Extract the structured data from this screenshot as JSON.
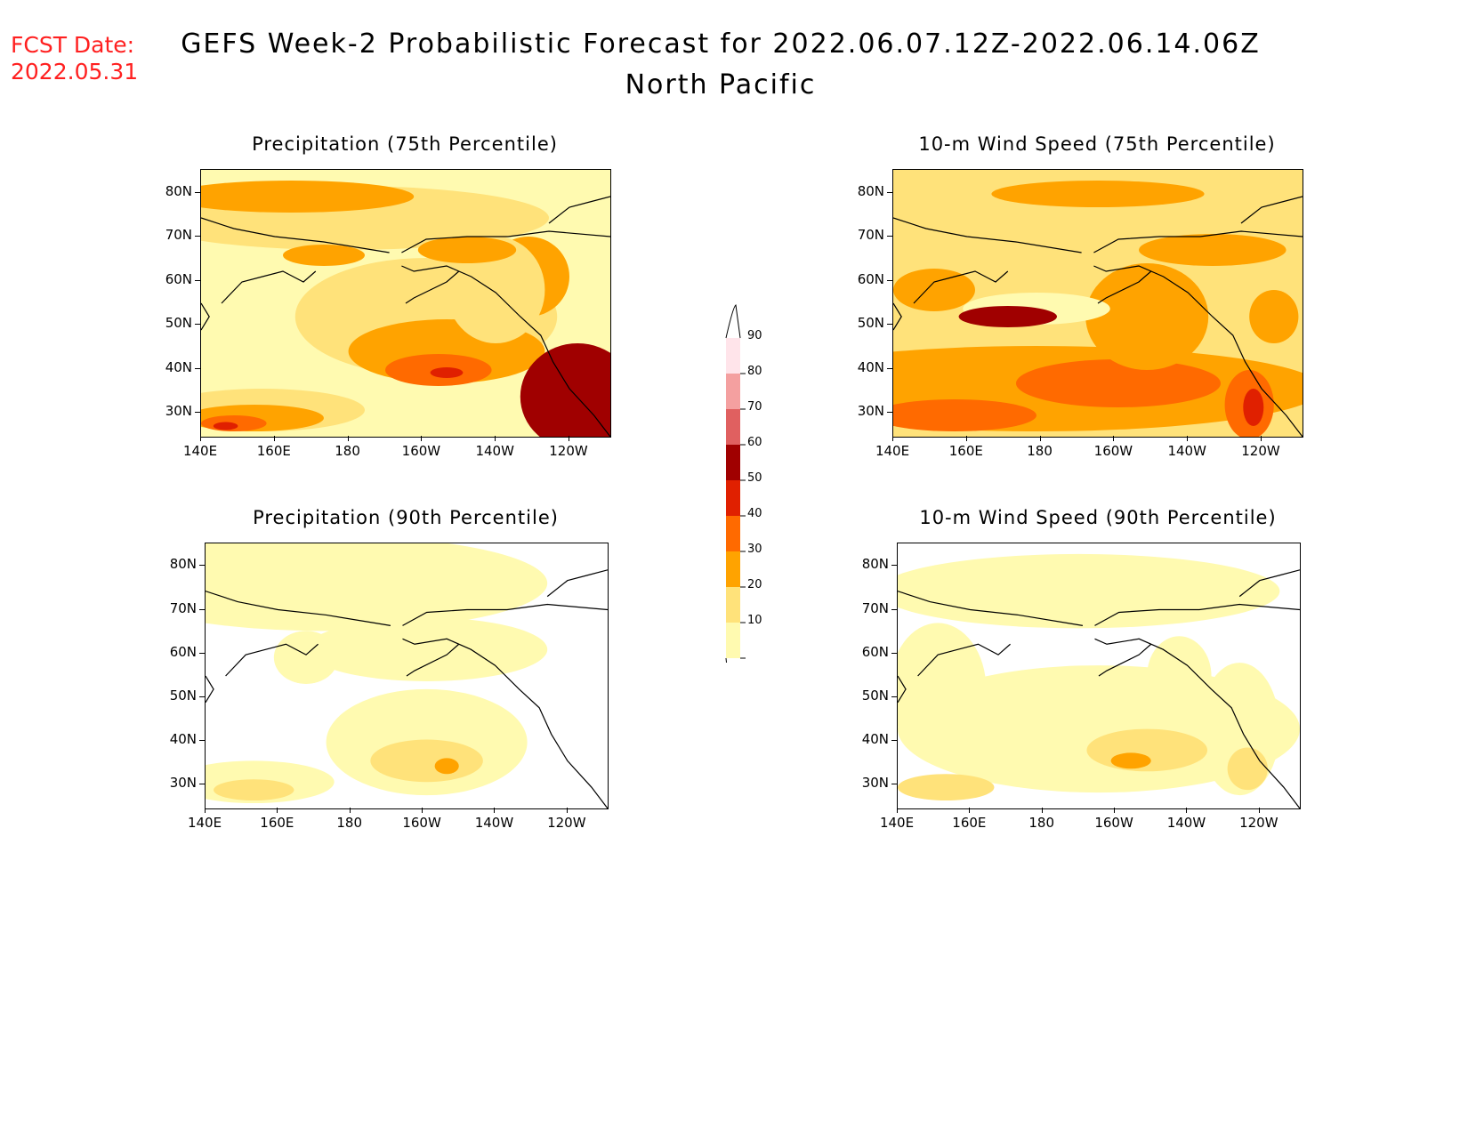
{
  "header": {
    "fcst_label": "FCST Date:",
    "fcst_date": "2022.05.31",
    "title_line1": "GEFS Week-2 Probabilistic Forecast for 2022.06.07.12Z-2022.06.14.06Z",
    "title_line2": "North Pacific"
  },
  "axes": {
    "lat_ticks": [
      "80N",
      "70N",
      "60N",
      "50N",
      "40N",
      "30N"
    ],
    "lon_ticks": [
      "140E",
      "160E",
      "180",
      "160W",
      "140W",
      "120W"
    ]
  },
  "panels": [
    {
      "id": "precip75",
      "title": "Precipitation (75th Percentile)"
    },
    {
      "id": "wind75",
      "title": "10-m Wind Speed (75th Percentile)"
    },
    {
      "id": "precip90",
      "title": "Precipitation (90th Percentile)"
    },
    {
      "id": "wind90",
      "title": "10-m Wind Speed (90th Percentile)"
    }
  ],
  "colorbar": {
    "levels": [
      "10",
      "20",
      "30",
      "40",
      "50",
      "60",
      "70",
      "80",
      "90"
    ],
    "colors": [
      "#fffab0",
      "#ffe27a",
      "#ffa300",
      "#ff6a00",
      "#e02000",
      "#a00000",
      "#e06060",
      "#f4a0a0",
      "#ffe4ea"
    ]
  }
}
